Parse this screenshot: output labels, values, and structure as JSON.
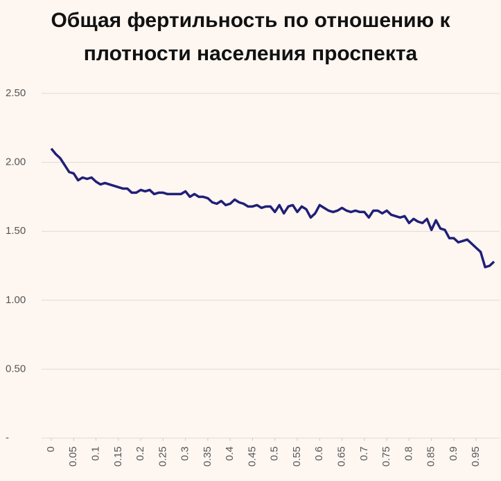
{
  "chart_data": {
    "type": "line",
    "title": "Общая фертильность по отношению к плотности населения проспекта",
    "x": [
      0,
      0.01,
      0.02,
      0.03,
      0.04,
      0.05,
      0.06,
      0.07,
      0.08,
      0.09,
      0.1,
      0.11,
      0.12,
      0.13,
      0.14,
      0.15,
      0.16,
      0.17,
      0.18,
      0.19,
      0.2,
      0.21,
      0.22,
      0.23,
      0.24,
      0.25,
      0.26,
      0.27,
      0.28,
      0.29,
      0.3,
      0.31,
      0.32,
      0.33,
      0.34,
      0.35,
      0.36,
      0.37,
      0.38,
      0.39,
      0.4,
      0.41,
      0.42,
      0.43,
      0.44,
      0.45,
      0.46,
      0.47,
      0.48,
      0.49,
      0.5,
      0.51,
      0.52,
      0.53,
      0.54,
      0.55,
      0.56,
      0.57,
      0.58,
      0.59,
      0.6,
      0.61,
      0.62,
      0.63,
      0.64,
      0.65,
      0.66,
      0.67,
      0.68,
      0.69,
      0.7,
      0.71,
      0.72,
      0.73,
      0.74,
      0.75,
      0.76,
      0.77,
      0.78,
      0.79,
      0.8,
      0.81,
      0.82,
      0.83,
      0.84,
      0.85,
      0.86,
      0.87,
      0.88,
      0.89,
      0.9,
      0.91,
      0.92,
      0.93,
      0.94,
      0.95,
      0.96,
      0.97,
      0.98,
      0.99
    ],
    "series": [
      {
        "color": "#1f1f78",
        "values": [
          2.1,
          2.06,
          2.03,
          1.98,
          1.93,
          1.92,
          1.87,
          1.89,
          1.88,
          1.89,
          1.86,
          1.84,
          1.85,
          1.84,
          1.83,
          1.82,
          1.81,
          1.81,
          1.78,
          1.78,
          1.8,
          1.79,
          1.8,
          1.77,
          1.78,
          1.78,
          1.77,
          1.77,
          1.77,
          1.77,
          1.79,
          1.75,
          1.77,
          1.75,
          1.75,
          1.74,
          1.71,
          1.7,
          1.72,
          1.69,
          1.7,
          1.73,
          1.71,
          1.7,
          1.68,
          1.68,
          1.69,
          1.67,
          1.68,
          1.68,
          1.64,
          1.69,
          1.63,
          1.68,
          1.69,
          1.64,
          1.68,
          1.66,
          1.6,
          1.63,
          1.69,
          1.67,
          1.65,
          1.64,
          1.65,
          1.67,
          1.65,
          1.64,
          1.65,
          1.64,
          1.64,
          1.6,
          1.65,
          1.65,
          1.63,
          1.65,
          1.62,
          1.61,
          1.6,
          1.61,
          1.56,
          1.59,
          1.57,
          1.56,
          1.59,
          1.51,
          1.58,
          1.52,
          1.51,
          1.45,
          1.45,
          1.42,
          1.43,
          1.44,
          1.41,
          1.38,
          1.35,
          1.24,
          1.25,
          1.28
        ]
      }
    ],
    "xlim": [
      0,
      0.99
    ],
    "xticks": [
      0,
      0.05,
      0.1,
      0.15,
      0.2,
      0.25,
      0.3,
      0.35,
      0.4,
      0.45,
      0.5,
      0.55,
      0.6,
      0.65,
      0.7,
      0.75,
      0.8,
      0.85,
      0.9,
      0.95
    ],
    "ylim": [
      0,
      2.5
    ],
    "yticks": [
      {
        "value": 0,
        "label": "-"
      },
      {
        "value": 0.5,
        "label": "0.50"
      },
      {
        "value": 1,
        "label": "1.00"
      },
      {
        "value": 1.5,
        "label": "1.50"
      },
      {
        "value": 2,
        "label": "2.00"
      },
      {
        "value": 2.5,
        "label": "2.50"
      }
    ],
    "grid": true
  }
}
